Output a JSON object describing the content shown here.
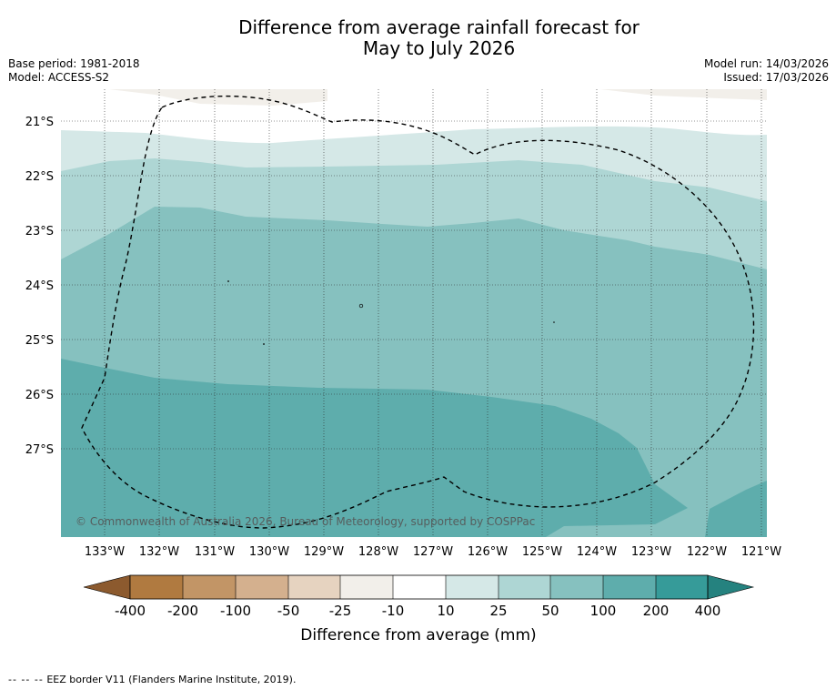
{
  "title_line1": "Difference from average rainfall forecast for",
  "title_line2": "May to July 2026",
  "meta": {
    "base_period": "Base period: 1981-2018",
    "model": "Model: ACCESS-S2",
    "model_run": "Model run: 14/03/2026",
    "issued": "Issued: 17/03/2026"
  },
  "map": {
    "lat_labels": [
      "21°S",
      "22°S",
      "23°S",
      "24°S",
      "25°S",
      "26°S",
      "27°S"
    ],
    "lon_labels": [
      "133°W",
      "132°W",
      "131°W",
      "130°W",
      "129°W",
      "128°W",
      "127°W",
      "126°W",
      "125°W",
      "124°W",
      "123°W",
      "122°W",
      "121°W"
    ],
    "copyright": "© Commonwealth of Australia 2026, Bureau of Meteorology, supported by COSPPac"
  },
  "legend": {
    "ticks": [
      "-400",
      "-200",
      "-100",
      "-50",
      "-25",
      "-10",
      "10",
      "25",
      "50",
      "100",
      "200",
      "400"
    ],
    "label": "Difference from average (mm)",
    "colors": {
      "below_400": "#8c5a2e",
      "n400_n200": "#b07a40",
      "n200_n100": "#c29566",
      "n100_n50": "#d4b08e",
      "n50_n25": "#e6d3c0",
      "n25_n10": "#f2efea",
      "n10_10": "#ffffff",
      "p10_25": "#d5e8e7",
      "p25_50": "#aed6d4",
      "p50_100": "#86c1bf",
      "p100_200": "#5eadac",
      "p200_400": "#369b99",
      "above_400": "#25827f"
    }
  },
  "footer": {
    "dashes": "-- -- --",
    "text": "EEZ border V11 (Flanders Marine Institute, 2019)."
  }
}
